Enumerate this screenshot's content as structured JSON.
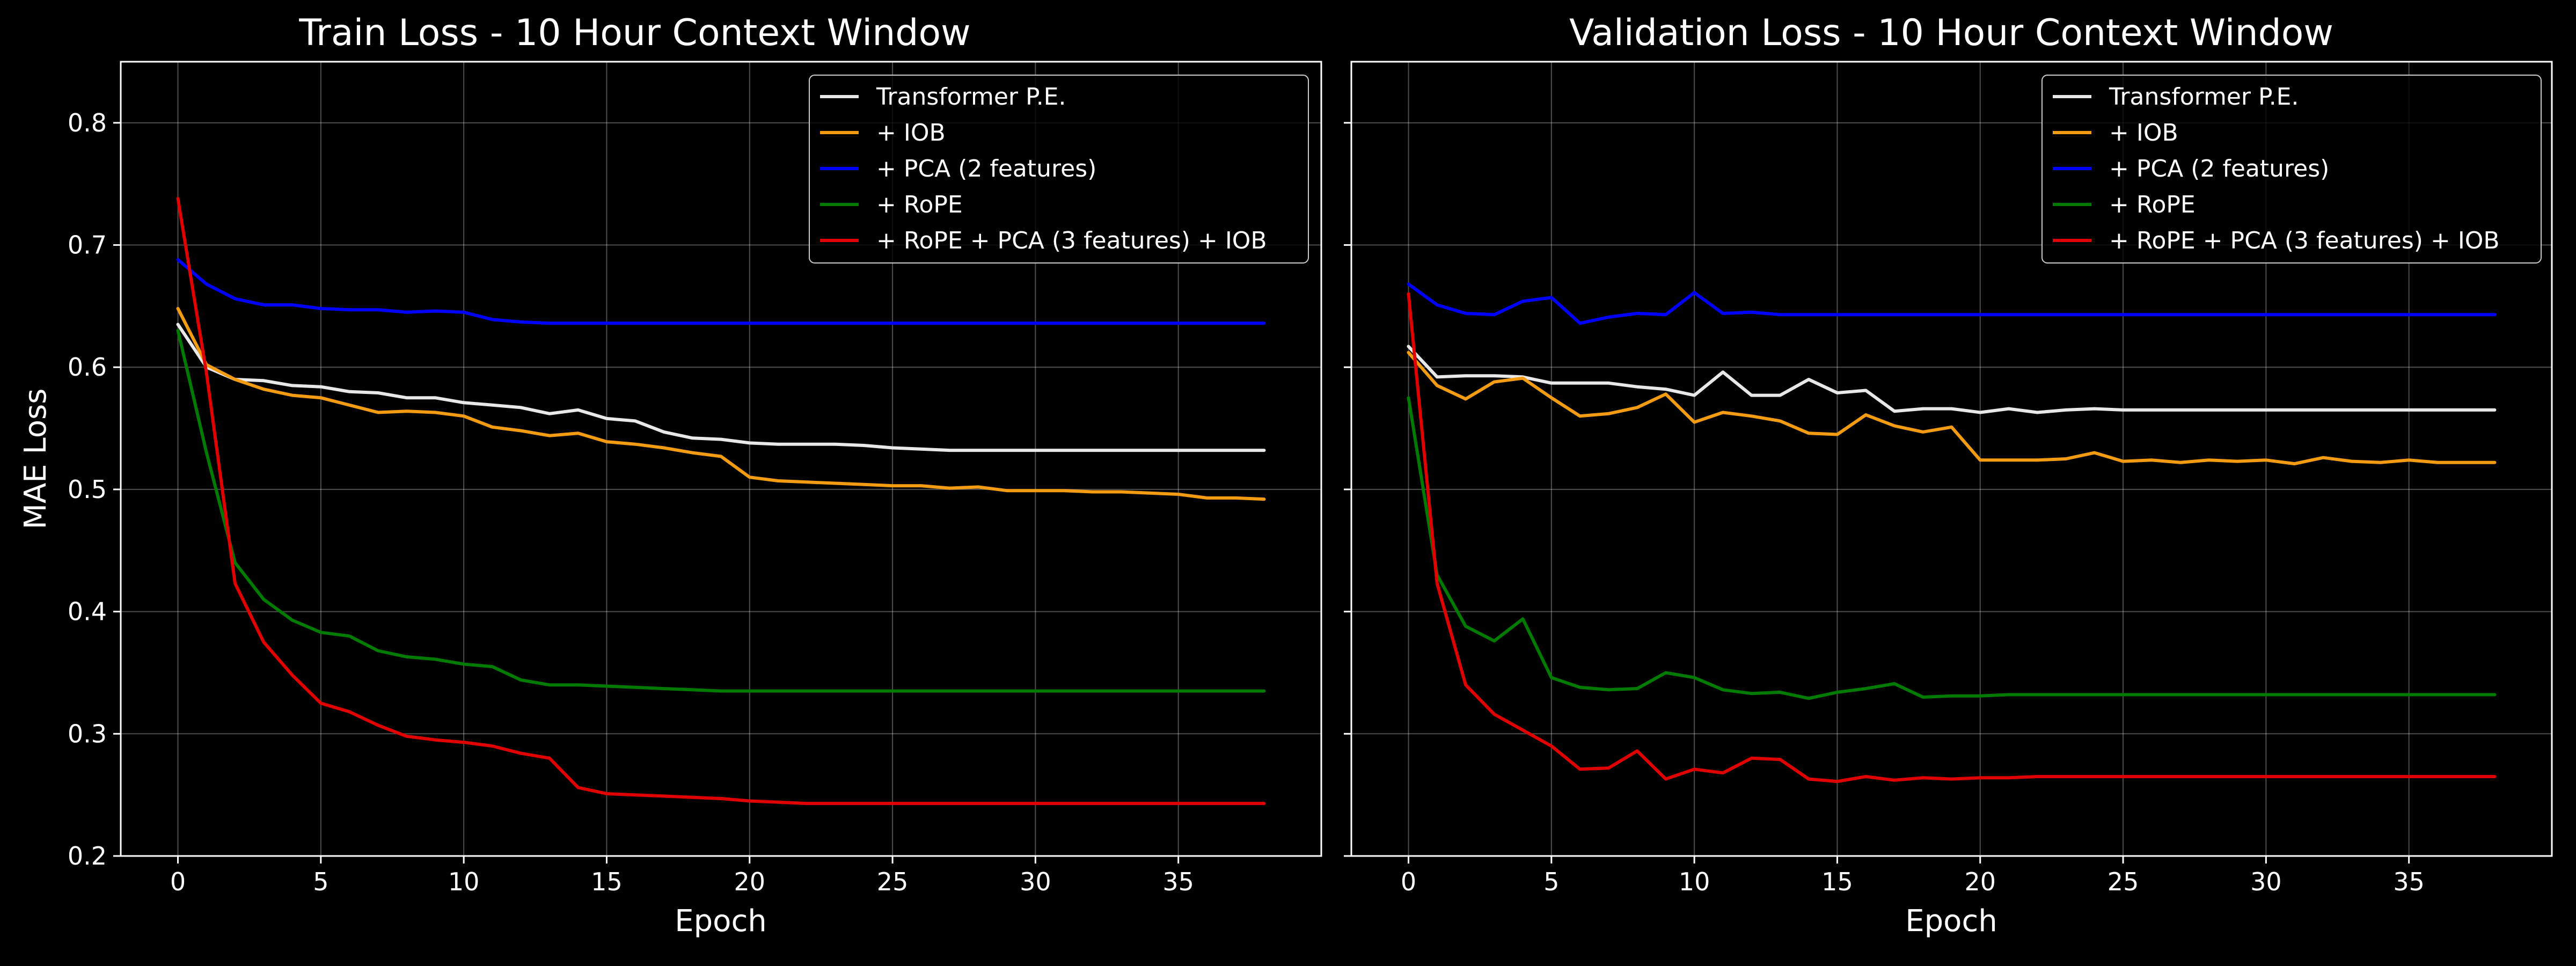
{
  "figure": {
    "background": "#000000",
    "foreground": "#ffffff"
  },
  "chart_data": [
    {
      "type": "line",
      "title": "Train Loss - 10 Hour Context Window",
      "xlabel": "Epoch",
      "ylabel": "MAE Loss",
      "xlim": [
        -2,
        40
      ],
      "ylim": [
        0.2,
        0.85
      ],
      "xticks": [
        0,
        5,
        10,
        15,
        20,
        25,
        30,
        35
      ],
      "yticks": [
        0.2,
        0.3,
        0.4,
        0.5,
        0.6,
        0.7,
        0.8
      ],
      "ytick_labels_visible": true,
      "grid": true,
      "legend_position": "top-right",
      "x": [
        0,
        1,
        2,
        3,
        4,
        5,
        6,
        7,
        8,
        9,
        10,
        11,
        12,
        13,
        14,
        15,
        16,
        17,
        18,
        19,
        20,
        21,
        22,
        23,
        24,
        25,
        26,
        27,
        28,
        29,
        30,
        31,
        32,
        33,
        34,
        35,
        36,
        37,
        38
      ],
      "series": [
        {
          "name": "Transformer P.E.",
          "color": "#e8e8e8",
          "values": [
            0.635,
            0.6,
            0.59,
            0.589,
            0.585,
            0.584,
            0.58,
            0.579,
            0.575,
            0.575,
            0.571,
            0.569,
            0.567,
            0.562,
            0.565,
            0.558,
            0.556,
            0.547,
            0.542,
            0.541,
            0.538,
            0.537,
            0.537,
            0.537,
            0.536,
            0.534,
            0.533,
            0.532,
            0.532,
            0.532,
            0.532,
            0.532,
            0.532,
            0.532,
            0.532,
            0.532,
            0.532,
            0.532,
            0.532
          ]
        },
        {
          "name": "+ IOB",
          "color": "#f39c12",
          "values": [
            0.648,
            0.602,
            0.59,
            0.582,
            0.577,
            0.575,
            0.569,
            0.563,
            0.564,
            0.563,
            0.56,
            0.551,
            0.548,
            0.544,
            0.546,
            0.539,
            0.537,
            0.534,
            0.53,
            0.527,
            0.51,
            0.507,
            0.506,
            0.505,
            0.504,
            0.503,
            0.503,
            0.501,
            0.502,
            0.499,
            0.499,
            0.499,
            0.498,
            0.498,
            0.497,
            0.496,
            0.493,
            0.493,
            0.492
          ]
        },
        {
          "name": "+ PCA (2 features)",
          "color": "#0000ff",
          "values": [
            0.688,
            0.668,
            0.656,
            0.651,
            0.651,
            0.648,
            0.647,
            0.647,
            0.645,
            0.646,
            0.645,
            0.639,
            0.637,
            0.636,
            0.636,
            0.636,
            0.636,
            0.636,
            0.636,
            0.636,
            0.636,
            0.636,
            0.636,
            0.636,
            0.636,
            0.636,
            0.636,
            0.636,
            0.636,
            0.636,
            0.636,
            0.636,
            0.636,
            0.636,
            0.636,
            0.636,
            0.636,
            0.636,
            0.636
          ]
        },
        {
          "name": "+ RoPE",
          "color": "#007a00",
          "values": [
            0.63,
            0.53,
            0.44,
            0.41,
            0.393,
            0.383,
            0.38,
            0.368,
            0.363,
            0.361,
            0.357,
            0.355,
            0.344,
            0.34,
            0.34,
            0.339,
            0.338,
            0.337,
            0.336,
            0.335,
            0.335,
            0.335,
            0.335,
            0.335,
            0.335,
            0.335,
            0.335,
            0.335,
            0.335,
            0.335,
            0.335,
            0.335,
            0.335,
            0.335,
            0.335,
            0.335,
            0.335,
            0.335,
            0.335
          ]
        },
        {
          "name": "+ RoPE + PCA (3 features) + IOB",
          "color": "#e00000",
          "values": [
            0.738,
            0.595,
            0.423,
            0.375,
            0.348,
            0.325,
            0.318,
            0.307,
            0.298,
            0.295,
            0.293,
            0.29,
            0.284,
            0.28,
            0.256,
            0.251,
            0.25,
            0.249,
            0.248,
            0.247,
            0.245,
            0.244,
            0.243,
            0.243,
            0.243,
            0.243,
            0.243,
            0.243,
            0.243,
            0.243,
            0.243,
            0.243,
            0.243,
            0.243,
            0.243,
            0.243,
            0.243,
            0.243,
            0.243
          ]
        }
      ]
    },
    {
      "type": "line",
      "title": "Validation Loss - 10 Hour Context Window",
      "xlabel": "Epoch",
      "ylabel": "",
      "xlim": [
        -2,
        40
      ],
      "ylim": [
        0.2,
        0.85
      ],
      "xticks": [
        0,
        5,
        10,
        15,
        20,
        25,
        30,
        35
      ],
      "yticks": [
        0.2,
        0.3,
        0.4,
        0.5,
        0.6,
        0.7,
        0.8
      ],
      "ytick_labels_visible": false,
      "grid": true,
      "legend_position": "top-right",
      "x": [
        0,
        1,
        2,
        3,
        4,
        5,
        6,
        7,
        8,
        9,
        10,
        11,
        12,
        13,
        14,
        15,
        16,
        17,
        18,
        19,
        20,
        21,
        22,
        23,
        24,
        25,
        26,
        27,
        28,
        29,
        30,
        31,
        32,
        33,
        34,
        35,
        36,
        37,
        38
      ],
      "series": [
        {
          "name": "Transformer P.E.",
          "color": "#e8e8e8",
          "values": [
            0.617,
            0.592,
            0.593,
            0.593,
            0.592,
            0.587,
            0.587,
            0.587,
            0.584,
            0.582,
            0.577,
            0.596,
            0.577,
            0.577,
            0.59,
            0.579,
            0.581,
            0.564,
            0.566,
            0.566,
            0.563,
            0.566,
            0.563,
            0.565,
            0.566,
            0.565,
            0.565,
            0.565,
            0.565,
            0.565,
            0.565,
            0.565,
            0.565,
            0.565,
            0.565,
            0.565,
            0.565,
            0.565,
            0.565
          ]
        },
        {
          "name": "+ IOB",
          "color": "#f39c12",
          "values": [
            0.612,
            0.585,
            0.574,
            0.588,
            0.591,
            0.575,
            0.56,
            0.562,
            0.567,
            0.578,
            0.555,
            0.563,
            0.56,
            0.556,
            0.546,
            0.545,
            0.561,
            0.552,
            0.547,
            0.551,
            0.524,
            0.524,
            0.524,
            0.525,
            0.53,
            0.523,
            0.524,
            0.522,
            0.524,
            0.523,
            0.524,
            0.521,
            0.526,
            0.523,
            0.522,
            0.524,
            0.522,
            0.522,
            0.522
          ]
        },
        {
          "name": "+ PCA (2 features)",
          "color": "#0000ff",
          "values": [
            0.668,
            0.651,
            0.644,
            0.643,
            0.654,
            0.657,
            0.636,
            0.641,
            0.644,
            0.643,
            0.661,
            0.644,
            0.645,
            0.643,
            0.643,
            0.643,
            0.643,
            0.643,
            0.643,
            0.643,
            0.643,
            0.643,
            0.643,
            0.643,
            0.643,
            0.643,
            0.643,
            0.643,
            0.643,
            0.643,
            0.643,
            0.643,
            0.643,
            0.643,
            0.643,
            0.643,
            0.643,
            0.643,
            0.643
          ]
        },
        {
          "name": "+ RoPE",
          "color": "#007a00",
          "values": [
            0.575,
            0.43,
            0.388,
            0.376,
            0.394,
            0.346,
            0.338,
            0.336,
            0.337,
            0.35,
            0.346,
            0.336,
            0.333,
            0.334,
            0.329,
            0.334,
            0.337,
            0.341,
            0.33,
            0.331,
            0.331,
            0.332,
            0.332,
            0.332,
            0.332,
            0.332,
            0.332,
            0.332,
            0.332,
            0.332,
            0.332,
            0.332,
            0.332,
            0.332,
            0.332,
            0.332,
            0.332,
            0.332,
            0.332
          ]
        },
        {
          "name": "+ RoPE + PCA (3 features) + IOB",
          "color": "#e00000",
          "values": [
            0.66,
            0.423,
            0.34,
            0.316,
            0.303,
            0.29,
            0.271,
            0.272,
            0.286,
            0.263,
            0.271,
            0.268,
            0.28,
            0.279,
            0.263,
            0.261,
            0.265,
            0.262,
            0.264,
            0.263,
            0.264,
            0.264,
            0.265,
            0.265,
            0.265,
            0.265,
            0.265,
            0.265,
            0.265,
            0.265,
            0.265,
            0.265,
            0.265,
            0.265,
            0.265,
            0.265,
            0.265,
            0.265,
            0.265
          ]
        }
      ]
    }
  ]
}
